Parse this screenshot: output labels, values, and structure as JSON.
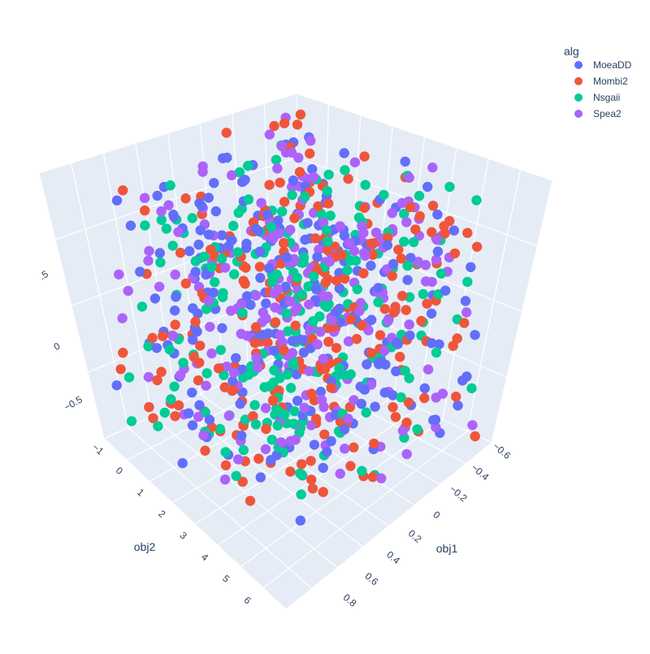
{
  "chart_data": {
    "type": "scatter3d",
    "legend": {
      "title": "alg",
      "placement": "top-right",
      "items": [
        {
          "name": "MoeaDD",
          "color": "#636efa"
        },
        {
          "name": "Mombi2",
          "color": "#ef553b"
        },
        {
          "name": "Nsgaii",
          "color": "#00cc96"
        },
        {
          "name": "Spea2",
          "color": "#ab63fa"
        }
      ]
    },
    "axes": {
      "x": {
        "title": "obj1",
        "range": [
          -0.65,
          0.85
        ],
        "ticks": [
          "−0.6",
          "−0.4",
          "−0.2",
          "0",
          "0.2",
          "0.4",
          "0.6",
          "0.8"
        ]
      },
      "y": {
        "title": "obj2",
        "range": [
          -1,
          6.5
        ],
        "ticks": [
          "−1",
          "0",
          "1",
          "2",
          "3",
          "4",
          "5",
          "6"
        ]
      },
      "z": {
        "title": "",
        "range": [
          -0.75,
          0.75
        ],
        "ticks": [
          "−0.5",
          "0",
          ".5"
        ]
      }
    },
    "grid": true,
    "point_count_estimate": 900,
    "note_values": "Approximate sampled points; 3D scatter of four algorithm series"
  }
}
